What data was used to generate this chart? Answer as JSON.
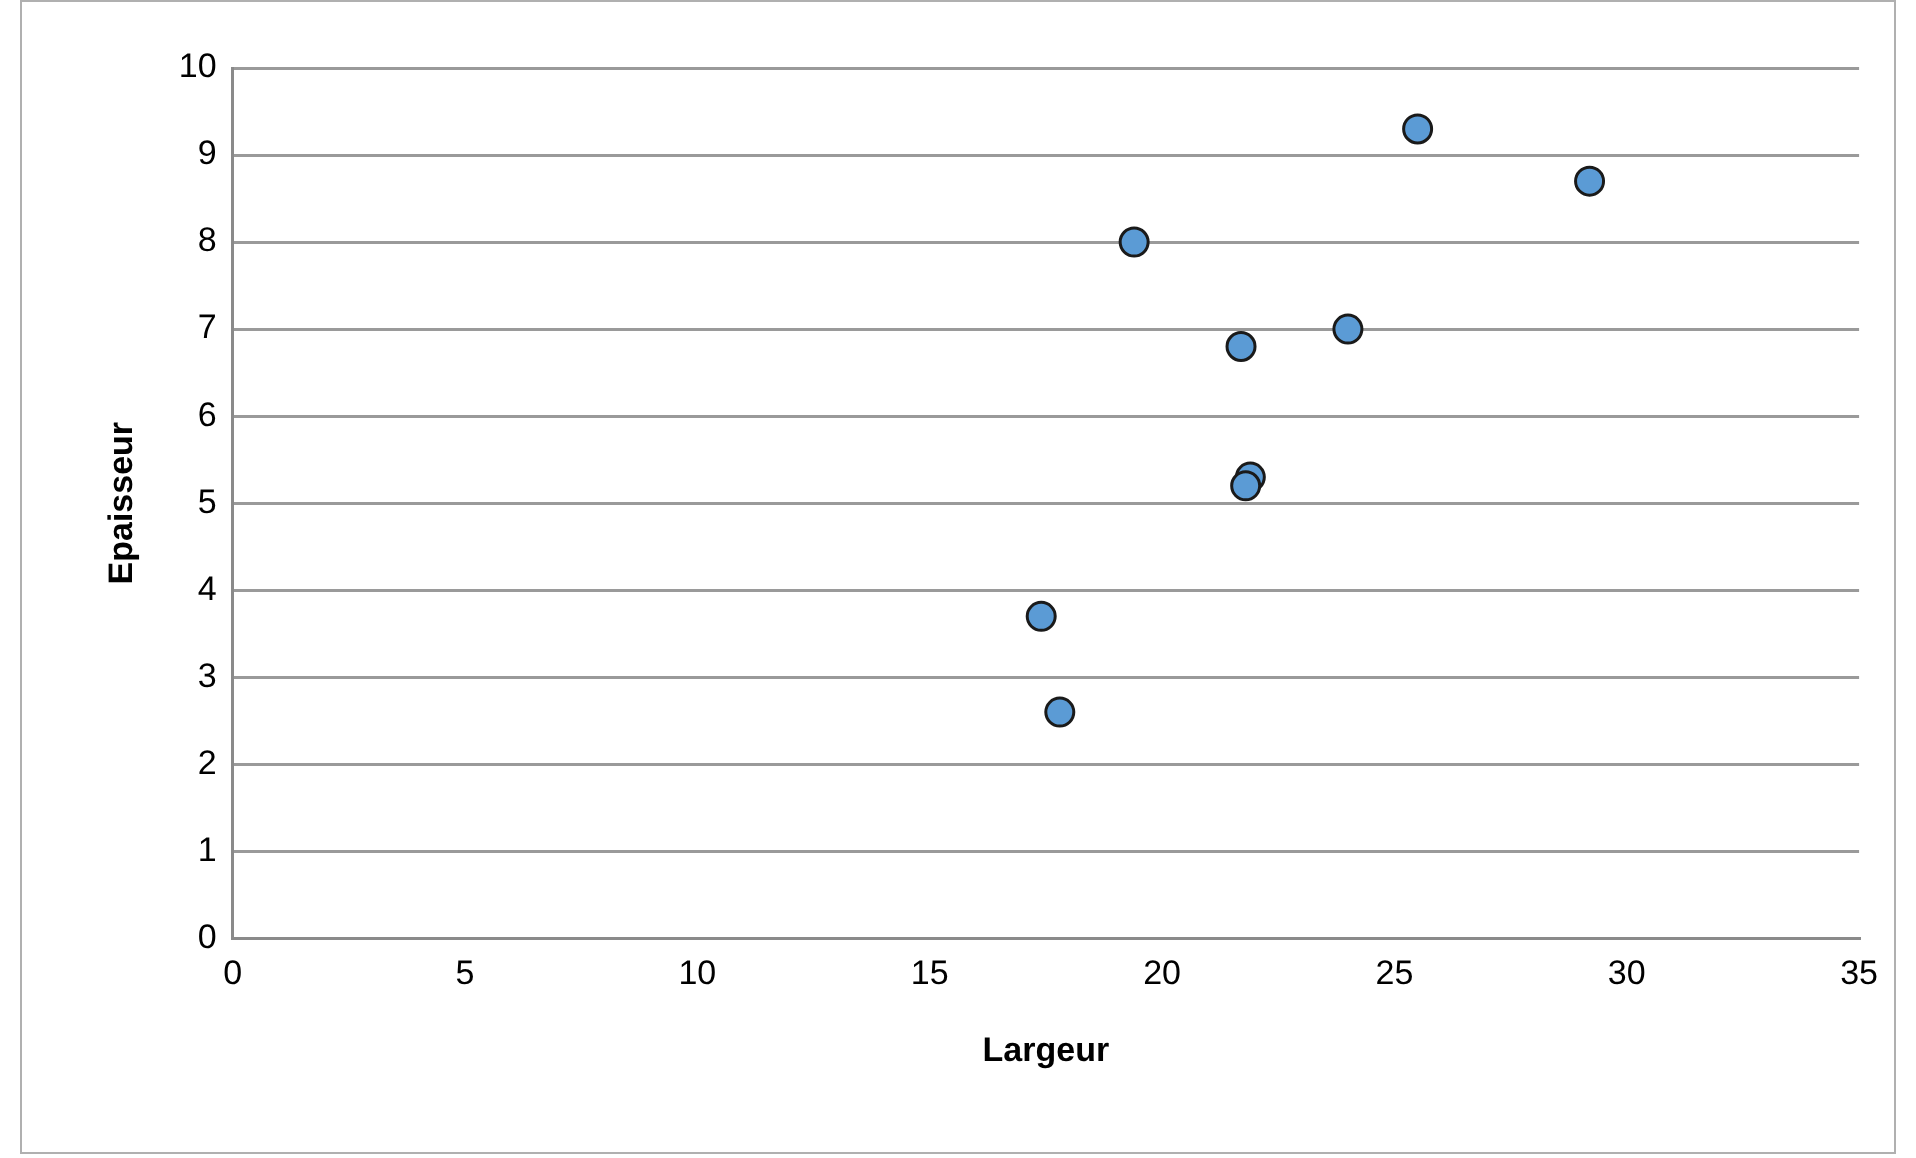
{
  "chart_data": {
    "type": "scatter",
    "xlabel": "Largeur",
    "ylabel": "Epaisseur",
    "x": [
      25.5,
      29.2,
      19.4,
      24.0,
      21.7,
      21.9,
      21.8,
      17.4,
      17.8
    ],
    "series": [
      {
        "color": "#5b9bd5",
        "values": [
          9.3,
          8.7,
          8.0,
          7.0,
          6.8,
          5.3,
          5.2,
          3.7,
          2.6
        ]
      }
    ],
    "xlim": [
      0,
      35
    ],
    "xticks": [
      0,
      5,
      10,
      15,
      20,
      25,
      30,
      35
    ],
    "ylim": [
      0,
      10
    ],
    "yticks": [
      0,
      1,
      2,
      3,
      4,
      5,
      6,
      7,
      8,
      9,
      10
    ],
    "grid": "y",
    "legend": false,
    "marker": "circle"
  }
}
